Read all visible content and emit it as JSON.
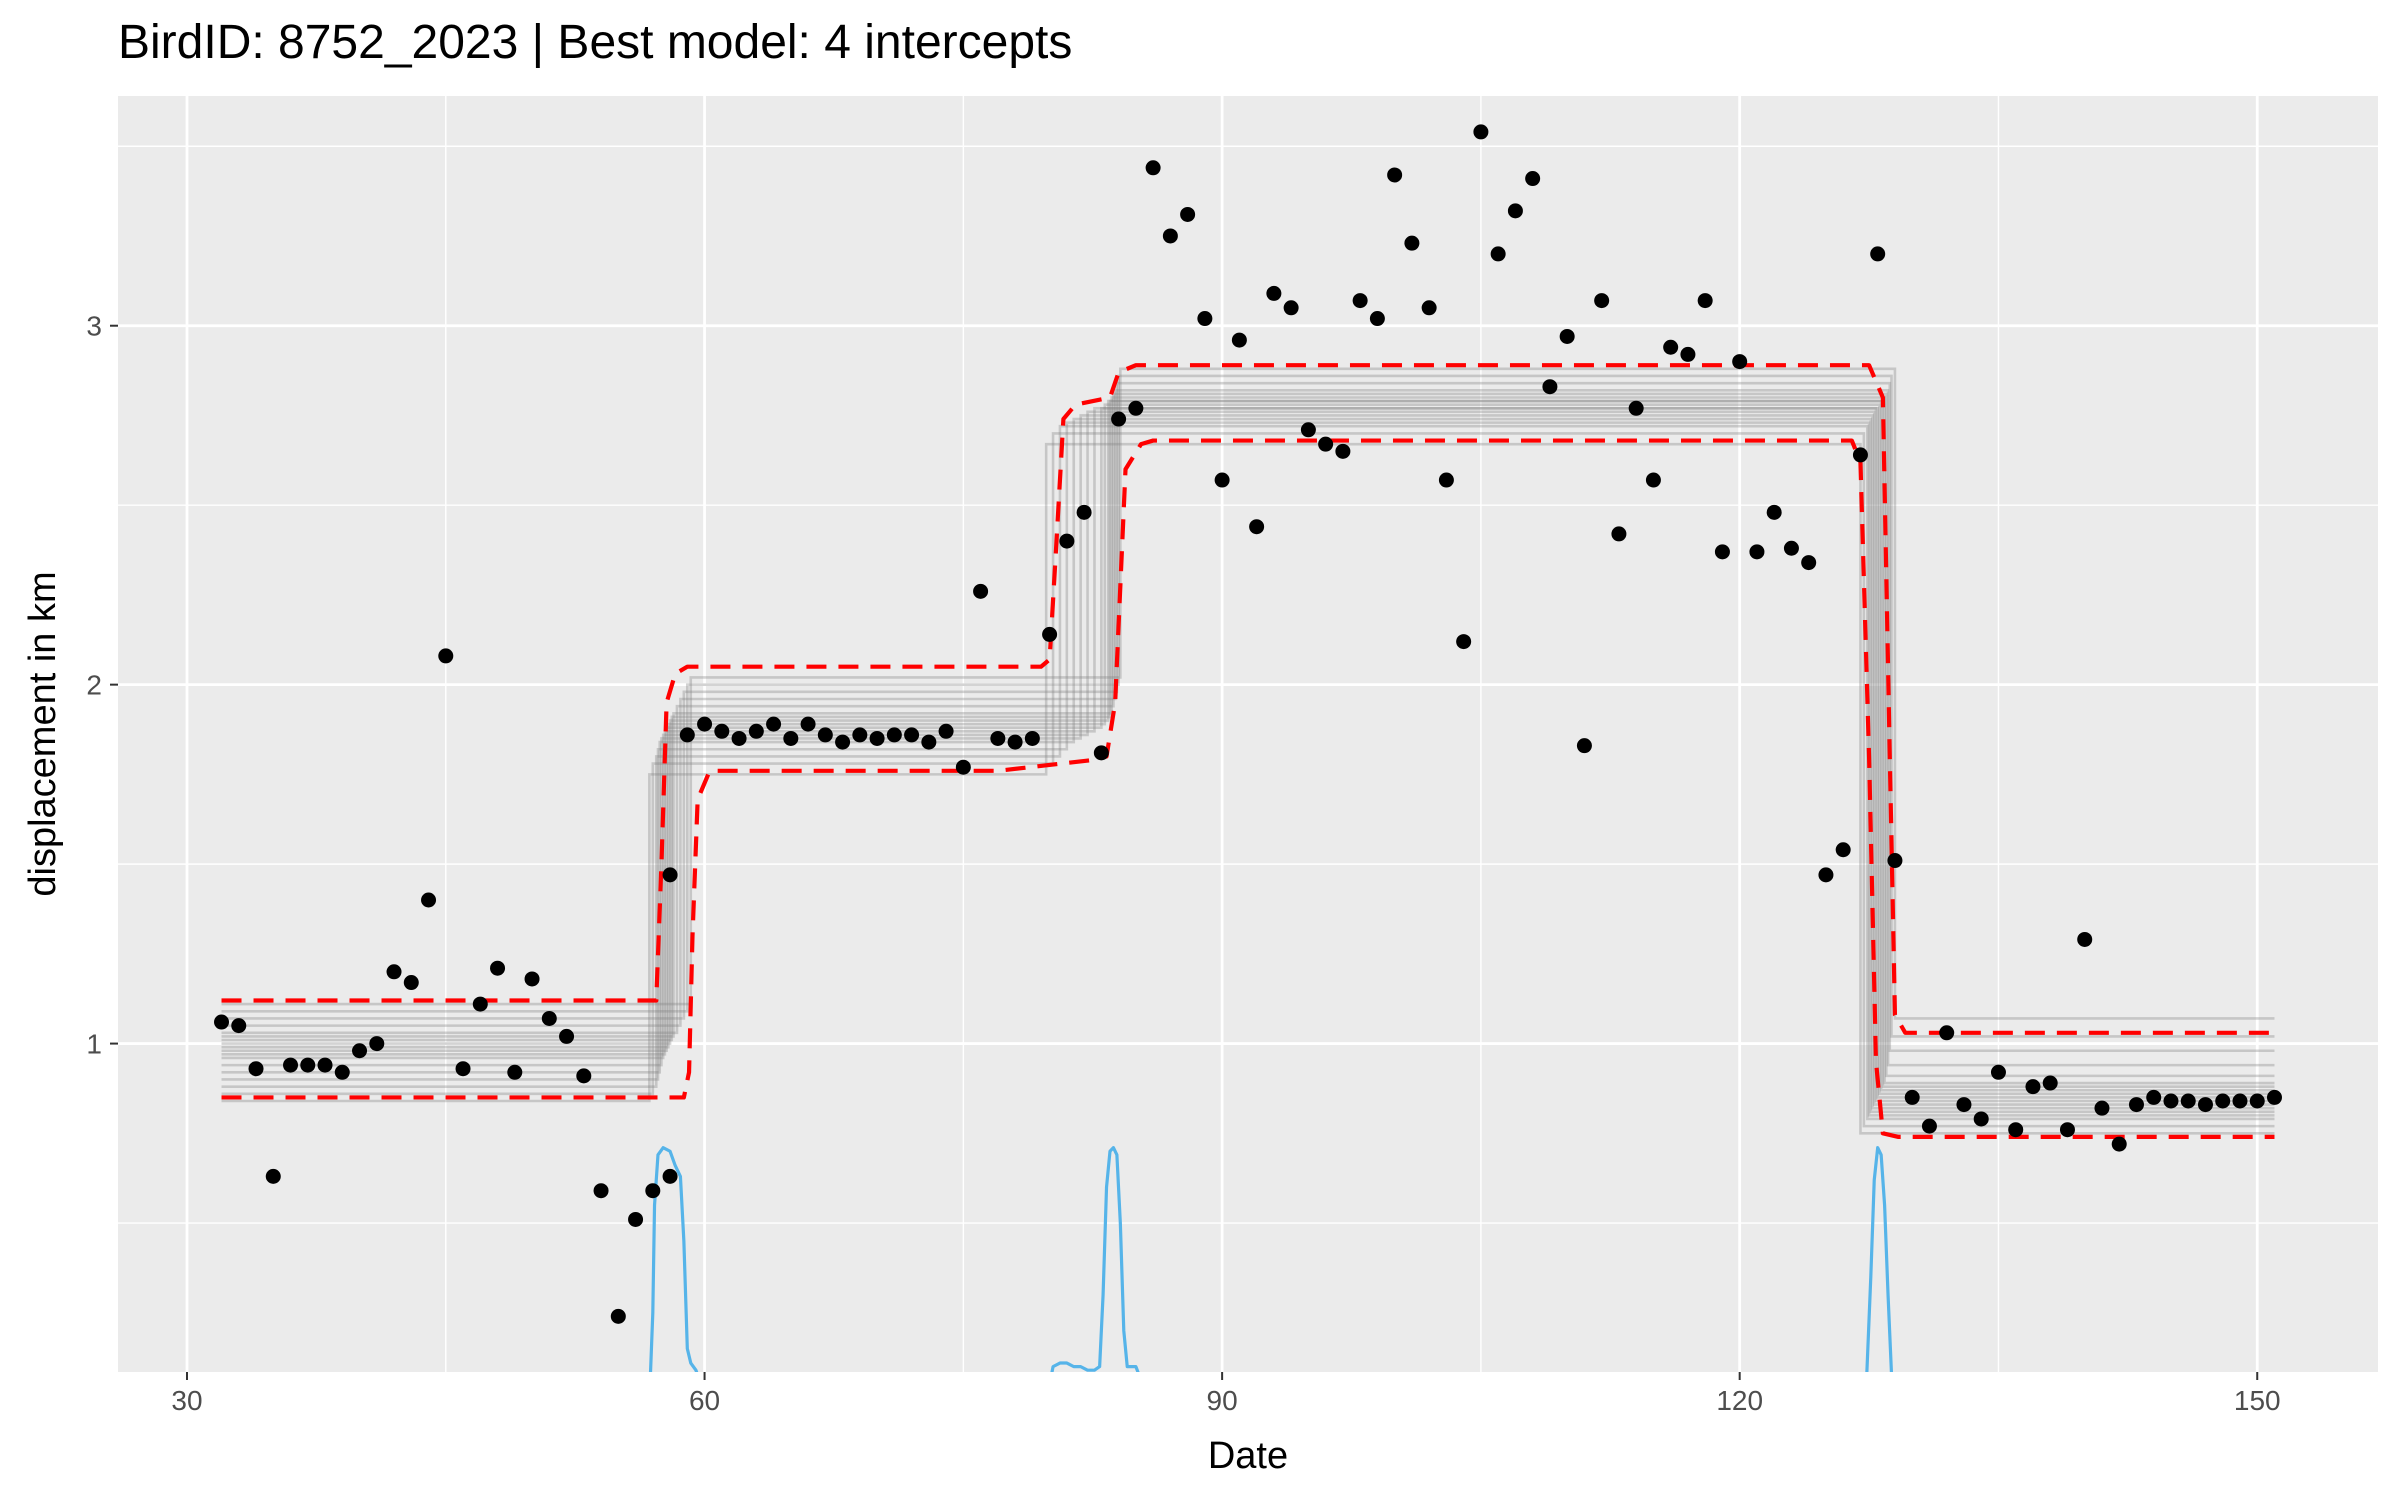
{
  "chart_data": {
    "type": "scatter",
    "title": "BirdID: 8752_2023 | Best model: 4 intercepts",
    "xlabel": "Date",
    "ylabel": "displacement in km",
    "xlim": [
      26,
      157
    ],
    "ylim": [
      0.085,
      3.64
    ],
    "x_ticks": [
      30,
      60,
      90,
      120,
      150
    ],
    "x_tick_labels": [
      "30",
      "60",
      "90",
      "120",
      "150"
    ],
    "y_ticks": [
      1,
      2,
      3
    ],
    "y_tick_labels": [
      "1",
      "2",
      "3"
    ],
    "grid": true,
    "legend": "none",
    "colors": {
      "panel_background": "#ebebeb",
      "grid": "#ffffff",
      "points": "#000000",
      "fitted_lines": "#808080",
      "confidence_band": "#ff0000",
      "density": "#56b4e9"
    },
    "points": [
      {
        "x": 32,
        "y": 1.06
      },
      {
        "x": 33,
        "y": 1.05
      },
      {
        "x": 34,
        "y": 0.93
      },
      {
        "x": 35,
        "y": 0.63
      },
      {
        "x": 36,
        "y": 0.94
      },
      {
        "x": 37,
        "y": 0.94
      },
      {
        "x": 38,
        "y": 0.94
      },
      {
        "x": 39,
        "y": 0.92
      },
      {
        "x": 40,
        "y": 0.98
      },
      {
        "x": 41,
        "y": 1.0
      },
      {
        "x": 42,
        "y": 1.2
      },
      {
        "x": 43,
        "y": 1.17
      },
      {
        "x": 44,
        "y": 1.4
      },
      {
        "x": 45,
        "y": 2.08
      },
      {
        "x": 46,
        "y": 0.93
      },
      {
        "x": 47,
        "y": 1.11
      },
      {
        "x": 48,
        "y": 1.21
      },
      {
        "x": 49,
        "y": 0.92
      },
      {
        "x": 50,
        "y": 1.18
      },
      {
        "x": 51,
        "y": 1.07
      },
      {
        "x": 52,
        "y": 1.02
      },
      {
        "x": 53,
        "y": 0.91
      },
      {
        "x": 54,
        "y": 0.59
      },
      {
        "x": 55,
        "y": 0.24
      },
      {
        "x": 56,
        "y": 0.51
      },
      {
        "x": 57,
        "y": 0.59
      },
      {
        "x": 58,
        "y": 1.47
      },
      {
        "x": 58,
        "y": 0.63
      },
      {
        "x": 59,
        "y": 1.86
      },
      {
        "x": 60,
        "y": 1.89
      },
      {
        "x": 61,
        "y": 1.87
      },
      {
        "x": 62,
        "y": 1.85
      },
      {
        "x": 63,
        "y": 1.87
      },
      {
        "x": 64,
        "y": 1.89
      },
      {
        "x": 65,
        "y": 1.85
      },
      {
        "x": 66,
        "y": 1.89
      },
      {
        "x": 67,
        "y": 1.86
      },
      {
        "x": 68,
        "y": 1.84
      },
      {
        "x": 69,
        "y": 1.86
      },
      {
        "x": 70,
        "y": 1.85
      },
      {
        "x": 71,
        "y": 1.86
      },
      {
        "x": 72,
        "y": 1.86
      },
      {
        "x": 73,
        "y": 1.84
      },
      {
        "x": 74,
        "y": 1.87
      },
      {
        "x": 75,
        "y": 1.77
      },
      {
        "x": 76,
        "y": 2.26
      },
      {
        "x": 77,
        "y": 1.85
      },
      {
        "x": 78,
        "y": 1.84
      },
      {
        "x": 79,
        "y": 1.85
      },
      {
        "x": 80,
        "y": 2.14
      },
      {
        "x": 81,
        "y": 2.4
      },
      {
        "x": 82,
        "y": 2.48
      },
      {
        "x": 83,
        "y": 1.81
      },
      {
        "x": 84,
        "y": 2.74
      },
      {
        "x": 85,
        "y": 2.77
      },
      {
        "x": 86,
        "y": 3.44
      },
      {
        "x": 87,
        "y": 3.25
      },
      {
        "x": 88,
        "y": 3.31
      },
      {
        "x": 89,
        "y": 3.02
      },
      {
        "x": 90,
        "y": 2.57
      },
      {
        "x": 91,
        "y": 2.96
      },
      {
        "x": 92,
        "y": 2.44
      },
      {
        "x": 93,
        "y": 3.09
      },
      {
        "x": 94,
        "y": 3.05
      },
      {
        "x": 95,
        "y": 2.71
      },
      {
        "x": 96,
        "y": 2.67
      },
      {
        "x": 97,
        "y": 2.65
      },
      {
        "x": 98,
        "y": 3.07
      },
      {
        "x": 99,
        "y": 3.02
      },
      {
        "x": 100,
        "y": 3.42
      },
      {
        "x": 101,
        "y": 3.23
      },
      {
        "x": 102,
        "y": 3.05
      },
      {
        "x": 103,
        "y": 2.57
      },
      {
        "x": 104,
        "y": 2.12
      },
      {
        "x": 105,
        "y": 3.54
      },
      {
        "x": 106,
        "y": 3.2
      },
      {
        "x": 107,
        "y": 3.32
      },
      {
        "x": 108,
        "y": 3.41
      },
      {
        "x": 109,
        "y": 2.83
      },
      {
        "x": 110,
        "y": 2.97
      },
      {
        "x": 111,
        "y": 1.83
      },
      {
        "x": 112,
        "y": 3.07
      },
      {
        "x": 113,
        "y": 2.42
      },
      {
        "x": 114,
        "y": 2.77
      },
      {
        "x": 115,
        "y": 2.57
      },
      {
        "x": 116,
        "y": 2.94
      },
      {
        "x": 117,
        "y": 2.92
      },
      {
        "x": 118,
        "y": 3.07
      },
      {
        "x": 119,
        "y": 2.37
      },
      {
        "x": 120,
        "y": 2.9
      },
      {
        "x": 121,
        "y": 2.37
      },
      {
        "x": 122,
        "y": 2.48
      },
      {
        "x": 123,
        "y": 2.38
      },
      {
        "x": 124,
        "y": 2.34
      },
      {
        "x": 125,
        "y": 1.47
      },
      {
        "x": 126,
        "y": 1.54
      },
      {
        "x": 127,
        "y": 2.64
      },
      {
        "x": 128,
        "y": 3.2
      },
      {
        "x": 129,
        "y": 1.51
      },
      {
        "x": 130,
        "y": 0.85
      },
      {
        "x": 131,
        "y": 0.77
      },
      {
        "x": 132,
        "y": 1.03
      },
      {
        "x": 133,
        "y": 0.83
      },
      {
        "x": 134,
        "y": 0.79
      },
      {
        "x": 135,
        "y": 0.92
      },
      {
        "x": 136,
        "y": 0.76
      },
      {
        "x": 137,
        "y": 0.88
      },
      {
        "x": 138,
        "y": 0.89
      },
      {
        "x": 139,
        "y": 0.76
      },
      {
        "x": 140,
        "y": 1.29
      },
      {
        "x": 141,
        "y": 0.82
      },
      {
        "x": 142,
        "y": 0.72
      },
      {
        "x": 143,
        "y": 0.83
      },
      {
        "x": 144,
        "y": 0.85
      },
      {
        "x": 145,
        "y": 0.84
      },
      {
        "x": 146,
        "y": 0.84
      },
      {
        "x": 147,
        "y": 0.83
      },
      {
        "x": 148,
        "y": 0.84
      },
      {
        "x": 149,
        "y": 0.84
      },
      {
        "x": 150,
        "y": 0.84
      },
      {
        "x": 151,
        "y": 0.85
      }
    ],
    "fitted_lines": [
      {
        "levels": [
          0.84,
          1.75,
          2.67,
          0.75
        ],
        "breaks": [
          56.8,
          79.8,
          127.0
        ]
      },
      {
        "levels": [
          0.86,
          1.78,
          2.7,
          0.77
        ],
        "breaks": [
          57.0,
          80.2,
          127.2
        ]
      },
      {
        "levels": [
          0.88,
          1.8,
          2.72,
          0.79
        ],
        "breaks": [
          57.2,
          80.6,
          127.4
        ]
      },
      {
        "levels": [
          0.9,
          1.82,
          2.73,
          0.8
        ],
        "breaks": [
          57.3,
          81.0,
          127.5
        ]
      },
      {
        "levels": [
          0.92,
          1.84,
          2.74,
          0.81
        ],
        "breaks": [
          57.4,
          81.4,
          127.6
        ]
      },
      {
        "levels": [
          0.94,
          1.85,
          2.75,
          0.82
        ],
        "breaks": [
          57.5,
          81.8,
          127.7
        ]
      },
      {
        "levels": [
          0.96,
          1.86,
          2.76,
          0.83
        ],
        "breaks": [
          57.6,
          82.2,
          127.8
        ]
      },
      {
        "levels": [
          0.97,
          1.87,
          2.77,
          0.84
        ],
        "breaks": [
          57.7,
          82.6,
          127.9
        ]
      },
      {
        "levels": [
          0.98,
          1.88,
          2.77,
          0.85
        ],
        "breaks": [
          57.8,
          83.0,
          128.0
        ]
      },
      {
        "levels": [
          0.99,
          1.89,
          2.78,
          0.86
        ],
        "breaks": [
          57.9,
          83.2,
          128.1
        ]
      },
      {
        "levels": [
          1.0,
          1.9,
          2.79,
          0.87
        ],
        "breaks": [
          58.0,
          83.4,
          128.2
        ]
      },
      {
        "levels": [
          1.01,
          1.91,
          2.79,
          0.88
        ],
        "breaks": [
          58.1,
          83.5,
          128.3
        ]
      },
      {
        "levels": [
          1.02,
          1.92,
          2.8,
          0.89
        ],
        "breaks": [
          58.2,
          83.6,
          128.4
        ]
      },
      {
        "levels": [
          1.03,
          1.94,
          2.81,
          0.91
        ],
        "breaks": [
          58.4,
          83.7,
          128.5
        ]
      },
      {
        "levels": [
          1.05,
          1.96,
          2.82,
          0.94
        ],
        "breaks": [
          58.6,
          83.8,
          128.6
        ]
      },
      {
        "levels": [
          1.07,
          1.98,
          2.84,
          0.98
        ],
        "breaks": [
          58.8,
          83.9,
          128.7
        ]
      },
      {
        "levels": [
          1.09,
          2.0,
          2.86,
          1.02
        ],
        "breaks": [
          59.0,
          84.0,
          128.8
        ]
      },
      {
        "levels": [
          1.11,
          2.02,
          2.88,
          1.07
        ],
        "breaks": [
          59.2,
          84.1,
          129.0
        ]
      }
    ],
    "fit_x_range": [
      32,
      151
    ],
    "confidence_band": {
      "upper": [
        {
          "x": 32,
          "y": 1.12
        },
        {
          "x": 57.2,
          "y": 1.12
        },
        {
          "x": 57.5,
          "y": 1.5
        },
        {
          "x": 57.8,
          "y": 1.95
        },
        {
          "x": 58.3,
          "y": 2.03
        },
        {
          "x": 59.0,
          "y": 2.05
        },
        {
          "x": 79.5,
          "y": 2.05
        },
        {
          "x": 80.0,
          "y": 2.07
        },
        {
          "x": 80.4,
          "y": 2.4
        },
        {
          "x": 80.8,
          "y": 2.74
        },
        {
          "x": 81.5,
          "y": 2.78
        },
        {
          "x": 83.5,
          "y": 2.8
        },
        {
          "x": 84.0,
          "y": 2.87
        },
        {
          "x": 85.0,
          "y": 2.89
        },
        {
          "x": 127.5,
          "y": 2.89
        },
        {
          "x": 128.3,
          "y": 2.8
        },
        {
          "x": 128.7,
          "y": 1.8
        },
        {
          "x": 129.0,
          "y": 1.08
        },
        {
          "x": 129.6,
          "y": 1.03
        },
        {
          "x": 151,
          "y": 1.03
        }
      ],
      "lower": [
        {
          "x": 32,
          "y": 0.85
        },
        {
          "x": 58.8,
          "y": 0.85
        },
        {
          "x": 59.1,
          "y": 0.92
        },
        {
          "x": 59.3,
          "y": 1.3
        },
        {
          "x": 59.6,
          "y": 1.68
        },
        {
          "x": 60.3,
          "y": 1.76
        },
        {
          "x": 77.0,
          "y": 1.76
        },
        {
          "x": 82.5,
          "y": 1.79
        },
        {
          "x": 83.3,
          "y": 1.8
        },
        {
          "x": 83.8,
          "y": 1.95
        },
        {
          "x": 84.4,
          "y": 2.6
        },
        {
          "x": 85.3,
          "y": 2.67
        },
        {
          "x": 86.0,
          "y": 2.68
        },
        {
          "x": 126.5,
          "y": 2.68
        },
        {
          "x": 127.0,
          "y": 2.62
        },
        {
          "x": 127.5,
          "y": 1.8
        },
        {
          "x": 127.9,
          "y": 0.95
        },
        {
          "x": 128.3,
          "y": 0.75
        },
        {
          "x": 129.2,
          "y": 0.74
        },
        {
          "x": 151,
          "y": 0.74
        }
      ]
    },
    "density_curve": [
      {
        "x": 56.8,
        "y": 0.0
      },
      {
        "x": 57.0,
        "y": 0.25
      },
      {
        "x": 57.1,
        "y": 0.55
      },
      {
        "x": 57.3,
        "y": 0.69
      },
      {
        "x": 57.6,
        "y": 0.71
      },
      {
        "x": 58.0,
        "y": 0.7
      },
      {
        "x": 58.3,
        "y": 0.66
      },
      {
        "x": 58.6,
        "y": 0.63
      },
      {
        "x": 58.8,
        "y": 0.45
      },
      {
        "x": 59.0,
        "y": 0.15
      },
      {
        "x": 59.2,
        "y": 0.11
      },
      {
        "x": 59.5,
        "y": 0.09
      },
      {
        "x": 59.8,
        "y": 0.05
      },
      {
        "x": 60.0,
        "y": 0.0
      },
      {
        "x": 79.8,
        "y": 0.0
      },
      {
        "x": 80.2,
        "y": 0.1
      },
      {
        "x": 80.6,
        "y": 0.11
      },
      {
        "x": 81.0,
        "y": 0.11
      },
      {
        "x": 81.4,
        "y": 0.1
      },
      {
        "x": 81.8,
        "y": 0.1
      },
      {
        "x": 82.2,
        "y": 0.09
      },
      {
        "x": 82.6,
        "y": 0.09
      },
      {
        "x": 82.9,
        "y": 0.1
      },
      {
        "x": 83.1,
        "y": 0.3
      },
      {
        "x": 83.3,
        "y": 0.6
      },
      {
        "x": 83.5,
        "y": 0.7
      },
      {
        "x": 83.7,
        "y": 0.71
      },
      {
        "x": 83.9,
        "y": 0.69
      },
      {
        "x": 84.1,
        "y": 0.5
      },
      {
        "x": 84.3,
        "y": 0.2
      },
      {
        "x": 84.5,
        "y": 0.1
      },
      {
        "x": 85.0,
        "y": 0.1
      },
      {
        "x": 85.4,
        "y": 0.05
      },
      {
        "x": 85.7,
        "y": 0.0
      },
      {
        "x": 127.3,
        "y": 0.0
      },
      {
        "x": 127.6,
        "y": 0.35
      },
      {
        "x": 127.8,
        "y": 0.62
      },
      {
        "x": 128.0,
        "y": 0.71
      },
      {
        "x": 128.2,
        "y": 0.69
      },
      {
        "x": 128.4,
        "y": 0.55
      },
      {
        "x": 128.6,
        "y": 0.3
      },
      {
        "x": 128.8,
        "y": 0.08
      },
      {
        "x": 128.9,
        "y": 0.0
      }
    ]
  }
}
